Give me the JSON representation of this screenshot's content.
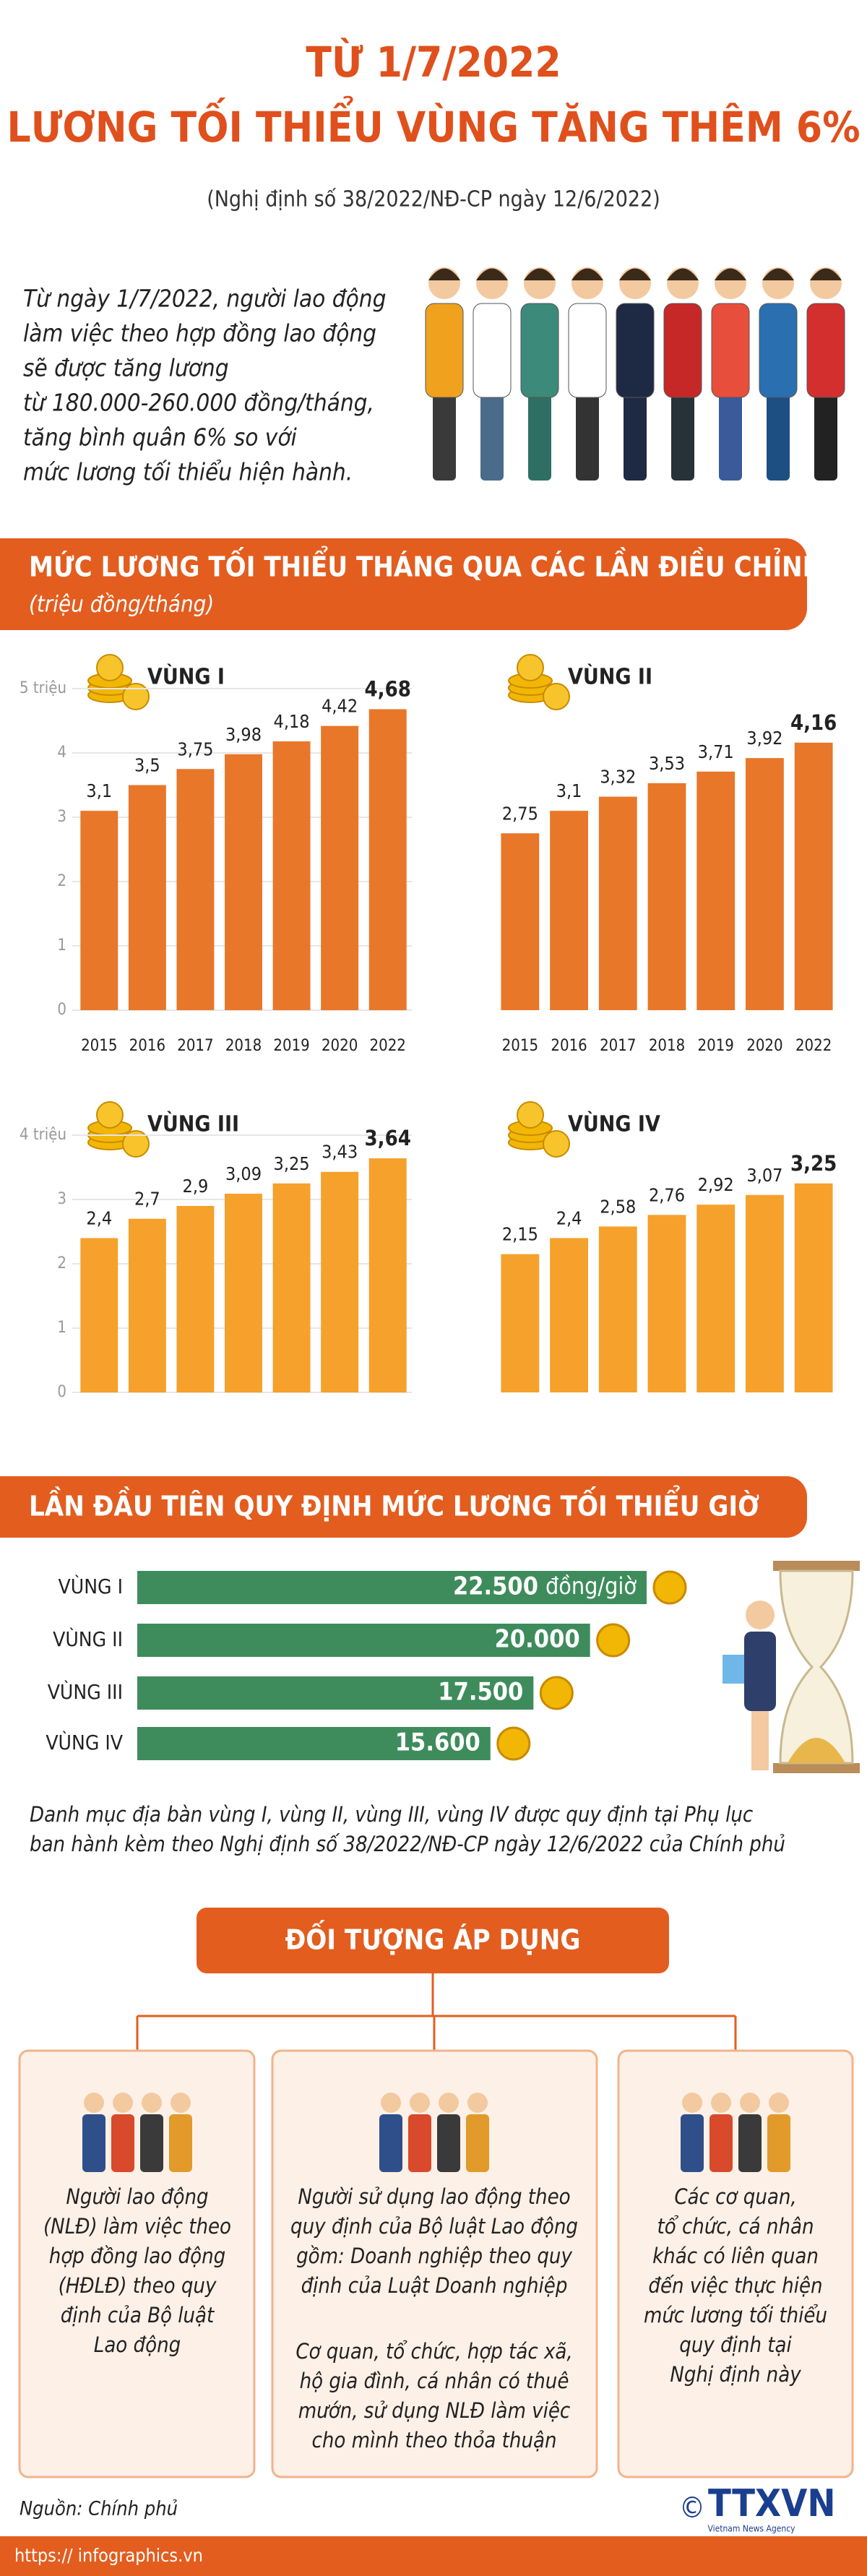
{
  "header": {
    "title_line1": "TỪ 1/7/2022",
    "title_line2": "LƯƠNG TỐI THIỂU VÙNG TĂNG THÊM 6%",
    "subtitle": "(Nghị định số 38/2022/NĐ-CP ngày 12/6/2022)"
  },
  "intro": [
    "Từ ngày 1/7/2022, người lao động",
    "làm việc theo hợp đồng lao động",
    "sẽ được tăng lương",
    "từ 180.000-260.000 đồng/tháng,",
    "tăng bình quân 6% so với",
    "mức lương tối thiểu hiện hành."
  ],
  "section_monthly": {
    "title": "MỨC LƯƠNG TỐI THIỂU THÁNG QUA CÁC LẦN ĐIỀU CHỈNH",
    "unit": "(triệu đồng/tháng)"
  },
  "chart_data": [
    {
      "type": "bar",
      "title": "VÙNG I",
      "categories": [
        "2015",
        "2016",
        "2017",
        "2018",
        "2019",
        "2020",
        "2022"
      ],
      "values": [
        3.1,
        3.5,
        3.75,
        3.98,
        4.18,
        4.42,
        4.68
      ],
      "value_labels": [
        "3,1",
        "3,5",
        "3,75",
        "3,98",
        "4,18",
        "4,42",
        "4,68"
      ],
      "ylim": [
        0,
        5
      ],
      "yticks": [
        0,
        1,
        2,
        3,
        4,
        {
          "value": 5,
          "label": "5 triệu"
        }
      ],
      "grid": true,
      "color": "#e8772a"
    },
    {
      "type": "bar",
      "title": "VÙNG II",
      "categories": [
        "2015",
        "2016",
        "2017",
        "2018",
        "2019",
        "2020",
        "2022"
      ],
      "values": [
        2.75,
        3.1,
        3.32,
        3.53,
        3.71,
        3.92,
        4.16
      ],
      "value_labels": [
        "2,75",
        "3,1",
        "3,32",
        "3,53",
        "3,71",
        "3,92",
        "4,16"
      ],
      "ylim": [
        0,
        5
      ],
      "color": "#e8772a"
    },
    {
      "type": "bar",
      "title": "VÙNG III",
      "categories": [
        null,
        null,
        null,
        null,
        null,
        null,
        null
      ],
      "values": [
        2.4,
        2.7,
        2.9,
        3.09,
        3.25,
        3.43,
        3.64
      ],
      "value_labels": [
        "2,4",
        "2,7",
        "2,9",
        "3,09",
        "3,25",
        "3,43",
        "3,64"
      ],
      "ylim": [
        0,
        4
      ],
      "yticks": [
        0,
        1,
        2,
        3,
        {
          "value": 4,
          "label": "4 triệu"
        }
      ],
      "grid": true,
      "color": "#f5a12b"
    },
    {
      "type": "bar",
      "title": "VÙNG IV",
      "categories": [
        null,
        null,
        null,
        null,
        null,
        null,
        null
      ],
      "values": [
        2.15,
        2.4,
        2.58,
        2.76,
        2.92,
        3.07,
        3.25
      ],
      "value_labels": [
        "2,15",
        "2,4",
        "2,58",
        "2,76",
        "2,92",
        "3,07",
        "3,25"
      ],
      "ylim": [
        0,
        4
      ],
      "color": "#f5a12b"
    },
    {
      "type": "hbar",
      "categories": [
        "VÙNG I",
        "VÙNG II",
        "VÙNG III",
        "VÙNG IV"
      ],
      "values": [
        22500,
        20000,
        17500,
        15600
      ],
      "value_labels": [
        "22.500",
        "20.000",
        "17.500",
        "15.600"
      ],
      "unit": "đồng/giờ",
      "color": "#3e8c5c"
    }
  ],
  "section_hourly": {
    "title": "LẦN ĐẦU TIÊN QUY ĐỊNH MỨC LƯƠNG TỐI THIỂU GIỜ"
  },
  "note": [
    "Danh mục địa bàn vùng I, vùng II, vùng III, vùng IV được quy định tại Phụ lục",
    "ban hành kèm theo Nghị định số 38/2022/NĐ-CP ngày 12/6/2022 của Chính phủ"
  ],
  "section_scope": {
    "title": "ĐỐI TƯỢNG ÁP DỤNG",
    "boxes": [
      {
        "paragraphs": [
          [
            "Người lao động",
            "(NLĐ) làm việc theo",
            "hợp đồng lao động",
            "(HĐLĐ) theo quy",
            "định của Bộ luật",
            "Lao động"
          ]
        ]
      },
      {
        "paragraphs": [
          [
            "Người sử dụng lao động theo",
            "quy định của Bộ luật Lao động",
            "gồm: Doanh nghiệp theo quy",
            "định của Luật Doanh nghiệp"
          ],
          [
            "Cơ quan, tổ chức, hợp tác xã,",
            "hộ gia đình, cá nhân có thuê",
            "mướn, sử dụng NLĐ làm việc",
            "cho mình theo thỏa thuận"
          ]
        ]
      },
      {
        "paragraphs": [
          [
            "Các cơ quan,",
            "tổ chức, cá nhân",
            "khác có liên quan",
            "đến việc thực hiện",
            "mức lương tối thiểu",
            "quy định tại",
            "Nghị định này"
          ]
        ]
      }
    ]
  },
  "footer": {
    "source": "Nguồn: Chính phủ",
    "copyright": "©",
    "logo": "TTXVN",
    "logo_sub": "Vietnam News Agency",
    "url": "https:// infographics.vn"
  }
}
